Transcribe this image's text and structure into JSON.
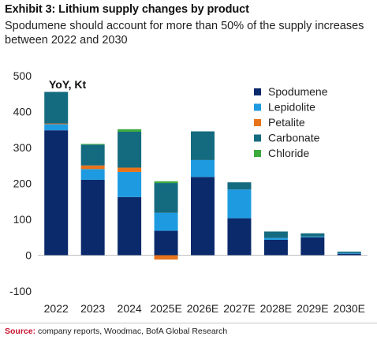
{
  "header": {
    "title": "Exhibit 3: Lithium supply changes by product",
    "subtitle": "Spodumene should account for more than 50% of the supply increases between 2022 and 2030"
  },
  "footer": {
    "source_label": "Source:",
    "source_text": "company reports, Woodmac, BofA Global Research"
  },
  "chart_data": {
    "type": "bar",
    "stacked": true,
    "unit_label": "YoY, Kt",
    "categories": [
      "2022",
      "2023",
      "2024",
      "2025E",
      "2026E",
      "2027E",
      "2028E",
      "2029E",
      "2030E"
    ],
    "series": [
      {
        "name": "Spodumene",
        "color": "#0b2a6b",
        "values": [
          348,
          210,
          162,
          68,
          218,
          103,
          43,
          50,
          4
        ]
      },
      {
        "name": "Lepidolite",
        "color": "#1e9be0",
        "values": [
          17,
          30,
          70,
          50,
          47,
          80,
          5,
          2,
          2
        ]
      },
      {
        "name": "Petalite",
        "color": "#e8731a",
        "values": [
          2,
          10,
          12,
          -12,
          0,
          0,
          0,
          0,
          0
        ]
      },
      {
        "name": "Carbonate",
        "color": "#146b80",
        "values": [
          88,
          58,
          100,
          83,
          80,
          20,
          18,
          9,
          4
        ]
      },
      {
        "name": "Chloride",
        "color": "#3daa3d",
        "values": [
          0,
          2,
          7,
          5,
          0,
          0,
          0,
          0,
          0
        ]
      }
    ],
    "ylim": [
      -100,
      500
    ],
    "yticks": [
      -100,
      0,
      100,
      200,
      300,
      400,
      500
    ],
    "grid": false,
    "legend_position": "top-right"
  }
}
